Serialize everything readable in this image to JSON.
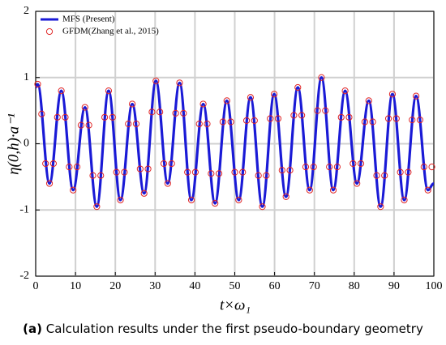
{
  "chart_data": {
    "type": "line",
    "xlabel": "t×ω₁",
    "ylabel": "η(0,h)·a⁻¹",
    "caption_label": "(a)",
    "caption": "Calculation results under the first pseudo-boundary geometry",
    "xlim": [
      0,
      100
    ],
    "xticks": [
      0,
      10,
      20,
      30,
      40,
      50,
      60,
      70,
      80,
      90,
      100
    ],
    "ylim": [
      -2,
      2
    ],
    "yticks": [
      -2,
      -1,
      0,
      1,
      2
    ],
    "grid": true,
    "legend": "upper left",
    "series": [
      {
        "name": "MFS (Present)",
        "type": "line",
        "color": "#1a1ad6",
        "x": [
          0,
          0.5,
          3.47,
          6.44,
          9.41,
          12.38,
          15.35,
          18.32,
          21.29,
          24.26,
          27.23,
          30.2,
          33.17,
          36.14,
          39.11,
          42.08,
          45.05,
          48.02,
          50.99,
          53.96,
          56.93,
          59.9,
          62.87,
          65.84,
          68.81,
          71.78,
          74.75,
          77.72,
          80.69,
          83.66,
          86.63,
          89.6,
          92.57,
          95.54,
          98.51,
          100
        ],
        "values": [
          0.85,
          0.9,
          -0.6,
          0.8,
          -0.7,
          0.55,
          -0.95,
          0.8,
          -0.85,
          0.6,
          -0.75,
          0.95,
          -0.6,
          0.92,
          -0.85,
          0.6,
          -0.9,
          0.65,
          -0.85,
          0.7,
          -0.95,
          0.75,
          -0.8,
          0.85,
          -0.7,
          1.0,
          -0.7,
          0.8,
          -0.6,
          0.65,
          -0.95,
          0.75,
          -0.85,
          0.72,
          -0.7,
          -0.6
        ]
      },
      {
        "name": "GFDM(Zhang et al., 2015)",
        "type": "scatter",
        "color": "#e02424",
        "x": [
          0.5,
          1.49,
          2.48,
          3.47,
          4.46,
          5.45,
          6.44,
          7.43,
          8.42,
          9.41,
          10.4,
          11.39,
          12.38,
          13.37,
          14.36,
          15.35,
          16.34,
          17.33,
          18.32,
          19.31,
          20.3,
          21.29,
          22.28,
          23.27,
          24.26,
          25.25,
          26.24,
          27.23,
          28.22,
          29.21,
          30.2,
          31.19,
          32.18,
          33.17,
          34.16,
          35.15,
          36.14,
          37.13,
          38.12,
          39.11,
          40.1,
          41.09,
          42.08,
          43.07,
          44.06,
          45.05,
          46.04,
          47.03,
          48.02,
          49.01,
          50.0,
          50.99,
          51.98,
          52.97,
          53.96,
          54.95,
          55.94,
          56.93,
          57.92,
          58.91,
          59.9,
          60.89,
          61.88,
          62.87,
          63.86,
          64.85,
          65.84,
          66.83,
          67.82,
          68.81,
          69.8,
          70.79,
          71.78,
          72.77,
          73.76,
          74.75,
          75.74,
          76.73,
          77.72,
          78.71,
          79.7,
          80.69,
          81.68,
          82.67,
          83.66,
          84.65,
          85.64,
          86.63,
          87.62,
          88.61,
          89.6,
          90.59,
          91.58,
          92.57,
          93.56,
          94.55,
          95.54,
          96.53,
          97.52,
          98.51,
          99.5
        ],
        "values": [
          0.9,
          0.45,
          -0.3,
          -0.6,
          -0.3,
          0.4,
          0.8,
          0.4,
          -0.35,
          -0.7,
          -0.35,
          0.28,
          0.55,
          0.28,
          -0.48,
          -0.95,
          -0.48,
          0.4,
          0.8,
          0.4,
          -0.43,
          -0.85,
          -0.43,
          0.3,
          0.6,
          0.3,
          -0.38,
          -0.75,
          -0.38,
          0.48,
          0.95,
          0.48,
          -0.3,
          -0.6,
          -0.3,
          0.46,
          0.92,
          0.46,
          -0.43,
          -0.85,
          -0.43,
          0.3,
          0.6,
          0.3,
          -0.45,
          -0.9,
          -0.45,
          0.33,
          0.65,
          0.33,
          -0.43,
          -0.85,
          -0.43,
          0.35,
          0.7,
          0.35,
          -0.48,
          -0.95,
          -0.48,
          0.38,
          0.75,
          0.38,
          -0.4,
          -0.8,
          -0.4,
          0.43,
          0.85,
          0.43,
          -0.35,
          -0.7,
          -0.35,
          0.5,
          1.0,
          0.5,
          -0.35,
          -0.7,
          -0.35,
          0.4,
          0.8,
          0.4,
          -0.3,
          -0.6,
          -0.3,
          0.33,
          0.65,
          0.33,
          -0.48,
          -0.95,
          -0.48,
          0.38,
          0.75,
          0.38,
          -0.43,
          -0.85,
          -0.43,
          0.36,
          0.72,
          0.36,
          -0.35,
          -0.7,
          -0.35
        ]
      }
    ]
  }
}
